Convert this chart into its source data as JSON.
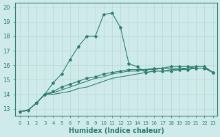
{
  "title": "",
  "xlabel": "Humidex (Indice chaleur)",
  "background_color": "#ceeaea",
  "grid_color": "#b8d8d0",
  "line_color": "#2e7d6e",
  "xlim": [
    -0.5,
    23.5
  ],
  "ylim": [
    12.5,
    20.3
  ],
  "yticks": [
    13,
    14,
    15,
    16,
    17,
    18,
    19,
    20
  ],
  "xticks": [
    0,
    1,
    2,
    3,
    4,
    5,
    6,
    7,
    8,
    9,
    10,
    11,
    12,
    13,
    14,
    15,
    16,
    17,
    18,
    19,
    20,
    21,
    22,
    23
  ],
  "series1_x": [
    0,
    1,
    2,
    3,
    4,
    5,
    6,
    7,
    8,
    9,
    10,
    11,
    12,
    13,
    14,
    15,
    16,
    17,
    18,
    19,
    20,
    21,
    22,
    23
  ],
  "series1_y": [
    12.8,
    12.9,
    13.4,
    14.0,
    14.8,
    15.4,
    16.4,
    17.3,
    18.0,
    18.0,
    19.5,
    19.6,
    18.6,
    16.1,
    15.9,
    15.5,
    15.6,
    15.6,
    15.6,
    15.7,
    15.7,
    15.8,
    15.8,
    15.5
  ],
  "series2_x": [
    0,
    1,
    2,
    3,
    4,
    5,
    6,
    7,
    8,
    9,
    10,
    11,
    12,
    13,
    14,
    15,
    16,
    17,
    18,
    19,
    20,
    21,
    22,
    23
  ],
  "series2_y": [
    12.8,
    12.9,
    13.4,
    14.0,
    14.2,
    14.5,
    14.7,
    14.9,
    15.1,
    15.2,
    15.4,
    15.5,
    15.6,
    15.7,
    15.7,
    15.7,
    15.8,
    15.8,
    15.9,
    15.9,
    15.9,
    15.9,
    15.9,
    15.5
  ],
  "series3_x": [
    0,
    1,
    2,
    3,
    4,
    5,
    6,
    7,
    8,
    9,
    10,
    11,
    12,
    13,
    14,
    15,
    16,
    17,
    18,
    19,
    20,
    21,
    22,
    23
  ],
  "series3_y": [
    12.8,
    12.9,
    13.4,
    14.0,
    14.1,
    14.3,
    14.5,
    14.7,
    14.9,
    15.1,
    15.2,
    15.4,
    15.5,
    15.6,
    15.6,
    15.7,
    15.7,
    15.8,
    15.8,
    15.8,
    15.8,
    15.9,
    15.9,
    15.5
  ],
  "series4_x": [
    0,
    1,
    2,
    3,
    4,
    5,
    6,
    7,
    8,
    9,
    10,
    11,
    12,
    13,
    14,
    15,
    16,
    17,
    18,
    19,
    20,
    21,
    22,
    23
  ],
  "series4_y": [
    12.8,
    12.9,
    13.4,
    14.0,
    14.0,
    14.1,
    14.2,
    14.4,
    14.5,
    14.7,
    14.9,
    15.1,
    15.2,
    15.3,
    15.4,
    15.5,
    15.6,
    15.6,
    15.7,
    15.7,
    15.8,
    15.8,
    15.8,
    15.5
  ]
}
